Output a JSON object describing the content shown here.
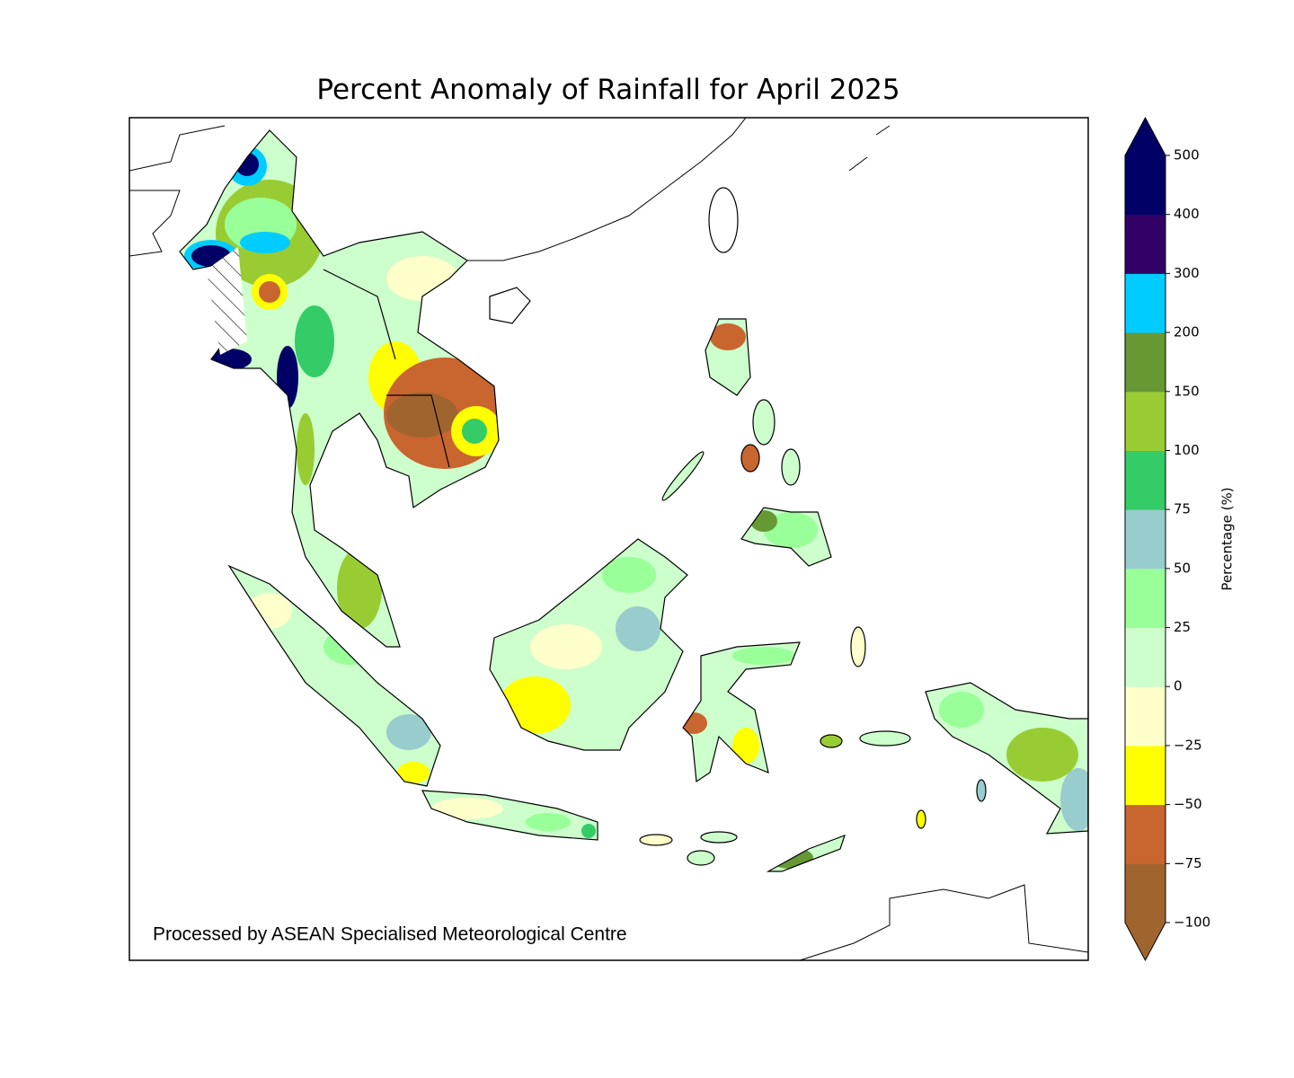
{
  "header": {
    "title": "Percent Anomaly of Rainfall for April 2025"
  },
  "credit": "Processed by ASEAN Specialised Meteorological Centre",
  "colorbar": {
    "label": "Percentage (%)",
    "ticks": [
      {
        "value": -100,
        "label": "−100"
      },
      {
        "value": -75,
        "label": "−75"
      },
      {
        "value": -50,
        "label": "−50"
      },
      {
        "value": -25,
        "label": "−25"
      },
      0,
      25,
      50,
      75,
      100,
      150,
      200,
      300,
      400,
      500
    ],
    "colors": [
      "#a0652f",
      "#c9652f",
      "#ffff00",
      "#ffffcc",
      "#ccffcc",
      "#99ff99",
      "#99cccc",
      "#33cc66",
      "#99cc33",
      "#669933",
      "#00ccff",
      "#330066",
      "#000066"
    ]
  }
}
